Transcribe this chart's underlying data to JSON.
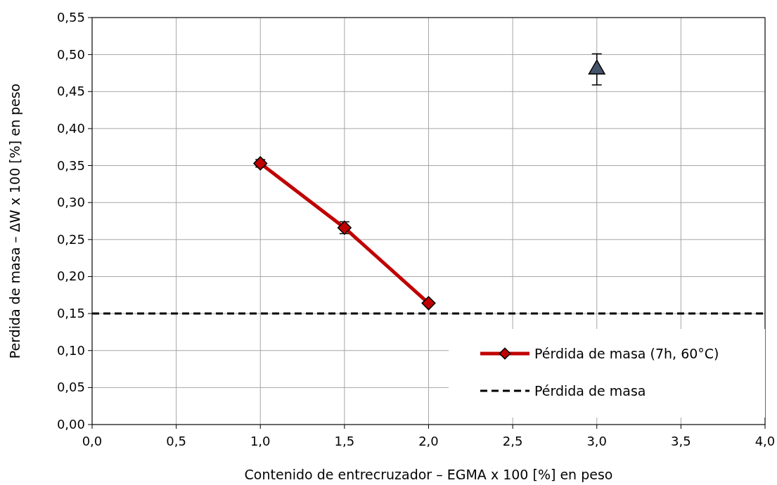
{
  "chart_data": {
    "type": "line",
    "xlabel": "Contenido de entrecruzador – EGMA x 100 [%] en peso",
    "ylabel": "Perdida de masa – ΔW x 100 [%] en peso",
    "xlim": [
      0,
      4
    ],
    "xticks": [
      {
        "value": 0,
        "label": "0,0"
      },
      {
        "value": 0.5,
        "label": "0,5"
      },
      {
        "value": 1,
        "label": "1,0"
      },
      {
        "value": 1.5,
        "label": "1,5"
      },
      {
        "value": 2,
        "label": "2,0"
      },
      {
        "value": 2.5,
        "label": "2,5"
      },
      {
        "value": 3,
        "label": "3,0"
      },
      {
        "value": 3.5,
        "label": "3,5"
      },
      {
        "value": 4,
        "label": "4,0"
      }
    ],
    "ylim": [
      0,
      0.55
    ],
    "yticks": [
      {
        "value": 0,
        "label": "0,00"
      },
      {
        "value": 0.05,
        "label": "0,05"
      },
      {
        "value": 0.1,
        "label": "0,10"
      },
      {
        "value": 0.15,
        "label": "0,15"
      },
      {
        "value": 0.2,
        "label": "0,20"
      },
      {
        "value": 0.25,
        "label": "0,25"
      },
      {
        "value": 0.3,
        "label": "0,30"
      },
      {
        "value": 0.35,
        "label": "0,35"
      },
      {
        "value": 0.4,
        "label": "0,40"
      },
      {
        "value": 0.45,
        "label": "0,45"
      },
      {
        "value": 0.5,
        "label": "0,50"
      },
      {
        "value": 0.55,
        "label": "0,55"
      }
    ],
    "grid": true,
    "legend": "bottom right",
    "series": [
      {
        "name": "Pérdida de masa (7h, 60°C)",
        "color": "#c00000",
        "marker": "diamond",
        "x": [
          1,
          1.5,
          2
        ],
        "values": [
          0.353,
          0.266,
          0.164
        ],
        "errors": [
          0.005,
          0.008,
          null
        ]
      },
      {
        "type": "scatter",
        "color": "#44546a",
        "marker": "triangle",
        "x": [
          3
        ],
        "values": [
          0.48
        ],
        "errors": [
          [
            0.459,
            0.501
          ]
        ]
      }
    ],
    "ref_lines": [
      {
        "axis": "y",
        "value": 0.15,
        "label": "Pérdida de masa",
        "color": "#000000",
        "line_style": "dashed"
      }
    ]
  }
}
